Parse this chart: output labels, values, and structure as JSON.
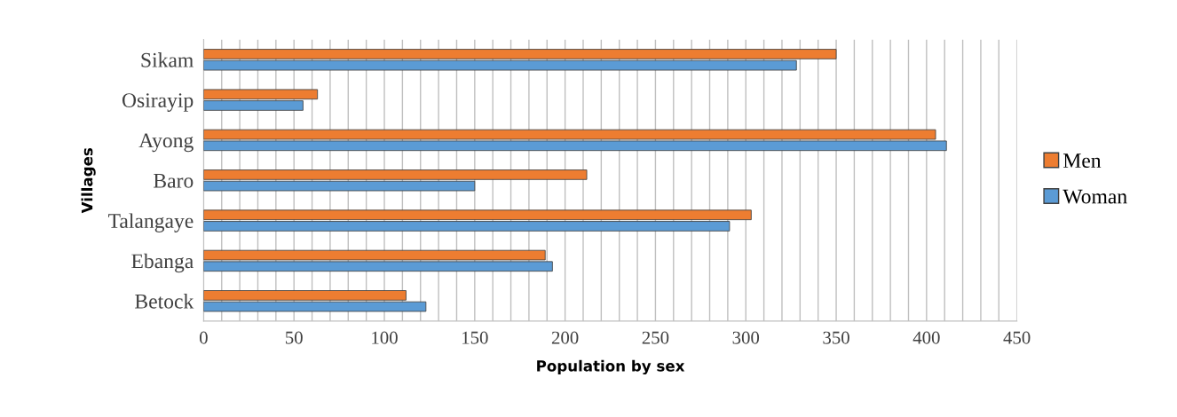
{
  "chart_data": {
    "type": "bar",
    "orientation": "horizontal",
    "xlabel": "Population by sex",
    "ylabel": "Villages",
    "categories": [
      "Sikam",
      "Osirayip",
      "Ayong",
      "Baro",
      "Talangaye",
      "Ebanga",
      "Betock"
    ],
    "series": [
      {
        "name": "Men",
        "color": "#ed7d31",
        "values": [
          350,
          63,
          405,
          212,
          303,
          189,
          112
        ]
      },
      {
        "name": "Woman",
        "color": "#5b9bd5",
        "values": [
          328,
          55,
          411,
          150,
          291,
          193,
          123
        ]
      }
    ],
    "xlim": [
      0,
      450
    ],
    "xticks": [
      0,
      {
        "value": 10,
        "label": null
      },
      {
        "value": 20,
        "label": null
      },
      {
        "value": 30,
        "label": null
      },
      {
        "value": 40,
        "label": null
      },
      50,
      {
        "value": 60,
        "label": null
      },
      {
        "value": 70,
        "label": null
      },
      {
        "value": 80,
        "label": null
      },
      {
        "value": 90,
        "label": null
      },
      100,
      {
        "value": 110,
        "label": null
      },
      {
        "value": 120,
        "label": null
      },
      {
        "value": 130,
        "label": null
      },
      {
        "value": 140,
        "label": null
      },
      150,
      {
        "value": 160,
        "label": null
      },
      {
        "value": 170,
        "label": null
      },
      {
        "value": 180,
        "label": null
      },
      {
        "value": 190,
        "label": null
      },
      200,
      {
        "value": 210,
        "label": null
      },
      {
        "value": 220,
        "label": null
      },
      {
        "value": 230,
        "label": null
      },
      {
        "value": 240,
        "label": null
      },
      250,
      {
        "value": 260,
        "label": null
      },
      {
        "value": 270,
        "label": null
      },
      {
        "value": 280,
        "label": null
      },
      {
        "value": 290,
        "label": null
      },
      300,
      {
        "value": 310,
        "label": null
      },
      {
        "value": 320,
        "label": null
      },
      {
        "value": 330,
        "label": null
      },
      {
        "value": 340,
        "label": null
      },
      350,
      {
        "value": 360,
        "label": null
      },
      {
        "value": 370,
        "label": null
      },
      {
        "value": 380,
        "label": null
      },
      {
        "value": 390,
        "label": null
      },
      400,
      {
        "value": 410,
        "label": null
      },
      {
        "value": 420,
        "label": null
      },
      {
        "value": 430,
        "label": null
      },
      {
        "value": 440,
        "label": null
      },
      450
    ],
    "grid": "x",
    "legend": "right"
  }
}
